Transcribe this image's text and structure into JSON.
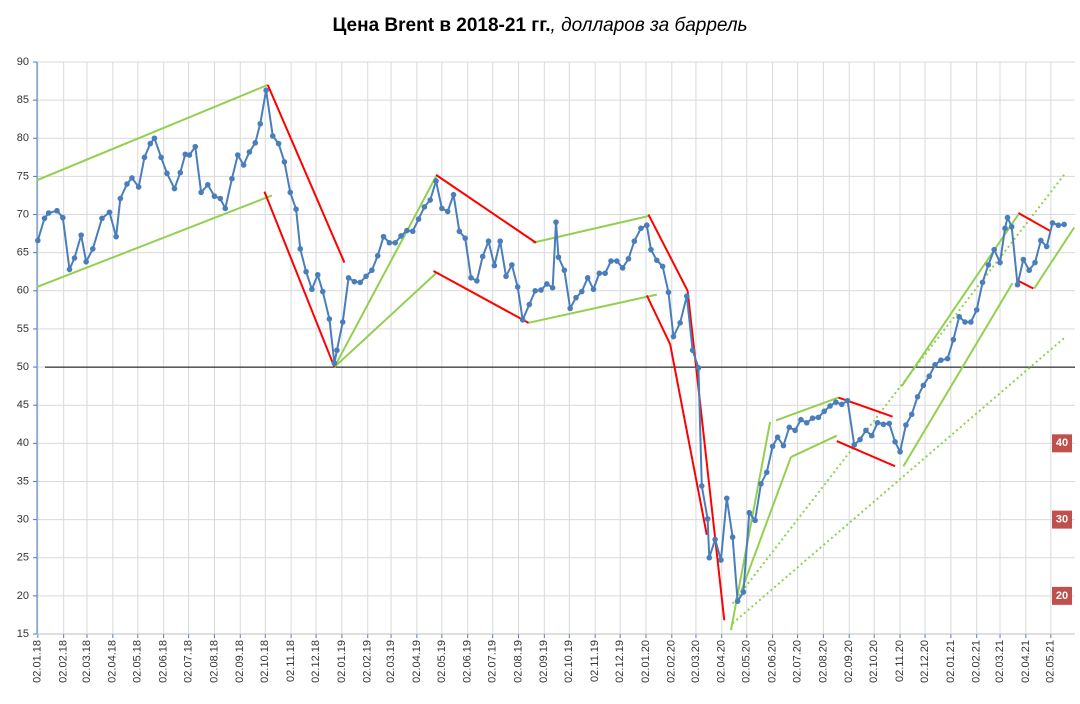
{
  "chart_data": {
    "type": "line",
    "title": "Цена Brent в 2018-21 гг.",
    "subtitle": ", долларов за баррель",
    "color": "#4a7ebb",
    "x": [
      "02.01.18",
      "10.01.18",
      "15.01.18",
      "25.01.18",
      "01.02.18",
      "09.02.18",
      "15.02.18",
      "23.02.18",
      "01.03.18",
      "09.03.18",
      "20.03.18",
      "29.03.18",
      "06.04.18",
      "11.04.18",
      "19.04.18",
      "25.04.18",
      "03.05.18",
      "10.05.18",
      "17.05.18",
      "22.05.18",
      "30.05.18",
      "06.06.18",
      "15.06.18",
      "22.06.18",
      "28.06.18",
      "03.07.18",
      "10.07.18",
      "17.07.18",
      "25.07.18",
      "02.08.18",
      "09.08.18",
      "15.08.18",
      "23.08.18",
      "30.08.18",
      "06.09.18",
      "13.09.18",
      "20.09.18",
      "26.09.18",
      "03.10.18",
      "11.10.18",
      "18.10.18",
      "25.10.18",
      "01.11.18",
      "08.11.18",
      "13.11.18",
      "20.11.18",
      "27.11.18",
      "04.12.18",
      "10.12.18",
      "18.12.18",
      "24.12.18",
      "27.12.18",
      "03.01.19",
      "10.01.19",
      "17.01.19",
      "24.01.19",
      "31.01.19",
      "07.02.19",
      "14.02.19",
      "21.02.19",
      "28.02.19",
      "07.03.19",
      "14.03.19",
      "21.03.19",
      "28.03.19",
      "04.04.19",
      "11.04.19",
      "18.04.19",
      "25.04.19",
      "02.05.19",
      "09.05.19",
      "16.05.19",
      "23.05.19",
      "30.05.19",
      "06.06.19",
      "13.06.19",
      "20.06.19",
      "27.06.19",
      "04.07.19",
      "11.07.19",
      "18.07.19",
      "25.07.19",
      "01.08.19",
      "07.08.19",
      "15.08.19",
      "22.08.19",
      "29.08.19",
      "05.09.19",
      "12.09.19",
      "16.09.19",
      "19.09.19",
      "26.09.19",
      "03.10.19",
      "10.10.19",
      "17.10.19",
      "24.10.19",
      "31.10.19",
      "07.11.19",
      "14.11.19",
      "21.11.19",
      "28.11.19",
      "05.12.19",
      "12.12.19",
      "19.12.19",
      "27.12.19",
      "03.01.20",
      "08.01.20",
      "15.01.20",
      "22.01.20",
      "29.01.20",
      "04.02.20",
      "12.02.20",
      "20.02.20",
      "27.02.20",
      "05.03.20",
      "09.03.20",
      "16.03.20",
      "18.03.20",
      "25.03.20",
      "01.04.20",
      "08.04.20",
      "15.04.20",
      "21.04.20",
      "28.04.20",
      "05.05.20",
      "12.05.20",
      "19.05.20",
      "26.05.20",
      "02.06.20",
      "08.06.20",
      "15.06.20",
      "22.06.20",
      "29.06.20",
      "06.07.20",
      "13.07.20",
      "20.07.20",
      "27.07.20",
      "03.08.20",
      "10.08.20",
      "17.08.20",
      "24.08.20",
      "31.08.20",
      "08.09.20",
      "15.09.20",
      "22.09.20",
      "29.09.20",
      "06.10.20",
      "13.10.20",
      "20.10.20",
      "27.10.20",
      "02.11.20",
      "09.11.20",
      "16.11.20",
      "23.11.20",
      "30.11.20",
      "07.12.20",
      "14.12.20",
      "21.12.20",
      "29.12.20",
      "05.01.21",
      "12.01.21",
      "19.01.21",
      "26.01.21",
      "02.02.21",
      "09.02.21",
      "16.02.21",
      "23.02.21",
      "02.03.21",
      "08.03.21",
      "11.03.21",
      "16.03.21",
      "23.03.21",
      "30.03.21",
      "06.04.21",
      "13.04.21",
      "20.04.21",
      "27.04.21",
      "04.05.21",
      "11.05.21",
      "18.05.21"
    ],
    "values": [
      66.6,
      69.5,
      70.2,
      70.5,
      69.6,
      62.8,
      64.3,
      67.3,
      63.8,
      65.5,
      69.5,
      70.3,
      67.1,
      72.1,
      74.0,
      74.8,
      73.6,
      77.5,
      79.3,
      80.0,
      77.5,
      75.4,
      73.4,
      75.5,
      77.9,
      77.8,
      78.9,
      72.9,
      73.9,
      72.4,
      72.1,
      70.8,
      74.7,
      77.8,
      76.5,
      78.2,
      79.4,
      81.9,
      86.3,
      80.3,
      79.3,
      76.9,
      72.9,
      70.7,
      65.5,
      62.5,
      60.2,
      62.1,
      59.9,
      56.3,
      50.5,
      52.2,
      55.9,
      61.7,
      61.2,
      61.1,
      61.9,
      62.7,
      64.6,
      67.1,
      66.3,
      66.3,
      67.2,
      67.9,
      67.8,
      69.4,
      71.0,
      71.9,
      74.4,
      70.8,
      70.4,
      72.6,
      67.8,
      66.9,
      61.7,
      61.3,
      64.5,
      66.5,
      63.3,
      66.5,
      61.9,
      63.4,
      60.5,
      56.2,
      58.2,
      60.0,
      60.1,
      60.9,
      60.4,
      69.0,
      64.4,
      62.7,
      57.7,
      59.1,
      59.9,
      61.7,
      60.2,
      62.3,
      62.3,
      63.9,
      63.9,
      63.0,
      64.2,
      66.5,
      68.2,
      68.6,
      65.4,
      64.0,
      63.2,
      59.8,
      54.0,
      55.8,
      59.3,
      52.2,
      49.9,
      34.4,
      30.1,
      25.0,
      27.4,
      24.7,
      32.8,
      27.7,
      19.3,
      20.5,
      30.9,
      29.9,
      34.7,
      36.2,
      39.6,
      40.8,
      39.7,
      42.1,
      41.7,
      43.1,
      42.7,
      43.3,
      43.4,
      44.2,
      44.9,
      45.4,
      45.1,
      45.6,
      39.8,
      40.5,
      41.7,
      41.0,
      42.7,
      42.5,
      42.6,
      40.2,
      38.9,
      42.4,
      43.8,
      46.1,
      47.6,
      48.8,
      50.3,
      50.9,
      51.1,
      53.6,
      56.6,
      55.9,
      55.9,
      57.5,
      61.1,
      63.4,
      65.4,
      63.7,
      68.2,
      69.6,
      68.4,
      60.8,
      64.1,
      62.7,
      63.7,
      66.6,
      65.8,
      68.9,
      68.6,
      68.7
    ],
    "xlim": [
      "01.01.18",
      "31.05.21"
    ],
    "xticks": [
      "02.01.18",
      "02.02.18",
      "02.03.18",
      "02.04.18",
      "02.05.18",
      "02.06.18",
      "02.07.18",
      "02.08.18",
      "02.09.18",
      "02.10.18",
      "02.11.18",
      "02.12.18",
      "02.01.19",
      "02.02.19",
      "02.03.19",
      "02.04.19",
      "02.05.19",
      "02.06.19",
      "02.07.19",
      "02.08.19",
      "02.09.19",
      "02.10.19",
      "02.11.19",
      "02.12.19",
      "02.01.20",
      "02.02.20",
      "02.03.20",
      "02.04.20",
      "02.05.20",
      "02.06.20",
      "02.07.20",
      "02.08.20",
      "02.09.20",
      "02.10.20",
      "02.11.20",
      "02.12.20",
      "02.01.21",
      "02.02.21",
      "02.03.21",
      "02.04.21",
      "02.05.21"
    ],
    "ylim": [
      15,
      90
    ],
    "yticks": [
      15,
      20,
      25,
      30,
      35,
      40,
      45,
      50,
      55,
      60,
      65,
      70,
      75,
      80,
      85,
      90
    ],
    "grid": true,
    "reference_line": 50,
    "side_labels": [
      40,
      30,
      20
    ],
    "side_label_color": "#c0504d",
    "trend_lines": [
      {
        "color": "#92d050",
        "style": "solid",
        "x": [
          "01.01.18",
          "05.10.18"
        ],
        "y": [
          74.5,
          87
        ]
      },
      {
        "color": "#92d050",
        "style": "solid",
        "x": [
          "01.01.18",
          "10.10.18"
        ],
        "y": [
          60.5,
          72.5
        ]
      },
      {
        "color": "#92d050",
        "style": "solid",
        "x": [
          "24.12.18",
          "25.04.19"
        ],
        "y": [
          50,
          75
        ]
      },
      {
        "color": "#92d050",
        "style": "solid",
        "x": [
          "24.12.18",
          "25.04.19"
        ],
        "y": [
          50,
          62.3
        ]
      },
      {
        "color": "#92d050",
        "style": "solid",
        "x": [
          "19.08.19",
          "05.01.20"
        ],
        "y": [
          66.3,
          69.8
        ]
      },
      {
        "color": "#92d050",
        "style": "solid",
        "x": [
          "14.08.19",
          "15.01.20"
        ],
        "y": [
          55.8,
          59.5
        ]
      },
      {
        "color": "#92d050",
        "style": "solid",
        "x": [
          "13.04.20",
          "30.05.20"
        ],
        "y": [
          15.5,
          42.8
        ]
      },
      {
        "color": "#92d050",
        "style": "solid",
        "x": [
          "25.04.20",
          "24.06.20"
        ],
        "y": [
          20.5,
          38.2
        ]
      },
      {
        "color": "#92d050",
        "style": "solid",
        "x": [
          "24.06.20",
          "18.08.20"
        ],
        "y": [
          38.2,
          41
        ]
      },
      {
        "color": "#92d050",
        "style": "solid",
        "x": [
          "06.06.20",
          "20.08.20"
        ],
        "y": [
          43,
          46
        ]
      },
      {
        "color": "#92d050",
        "style": "solid",
        "x": [
          "04.11.20",
          "24.03.21"
        ],
        "y": [
          47.5,
          70
        ]
      },
      {
        "color": "#92d050",
        "style": "solid",
        "x": [
          "06.11.20",
          "17.03.21"
        ],
        "y": [
          37,
          61
        ]
      },
      {
        "color": "#92d050",
        "style": "solid",
        "x": [
          "12.04.21",
          "30.05.21"
        ],
        "y": [
          60.3,
          68.3
        ]
      },
      {
        "color": "#92d050",
        "style": "dotted",
        "x": [
          "15.04.20",
          "20.05.21"
        ],
        "y": [
          19,
          75.5
        ]
      },
      {
        "color": "#92d050",
        "style": "dotted",
        "x": [
          "15.04.20",
          "20.05.21"
        ],
        "y": [
          16.4,
          54
        ]
      },
      {
        "color": "#ff0000",
        "style": "solid",
        "x": [
          "05.10.18",
          "05.01.19"
        ],
        "y": [
          87,
          63.7
        ]
      },
      {
        "color": "#ff0000",
        "style": "solid",
        "x": [
          "01.10.18",
          "24.12.18"
        ],
        "y": [
          73,
          50
        ]
      },
      {
        "color": "#ff0000",
        "style": "solid",
        "x": [
          "25.04.19",
          "23.08.19"
        ],
        "y": [
          75.2,
          66.3
        ]
      },
      {
        "color": "#ff0000",
        "style": "solid",
        "x": [
          "22.04.19",
          "14.08.19"
        ],
        "y": [
          62.6,
          55.8
        ]
      },
      {
        "color": "#ff0000",
        "style": "solid",
        "x": [
          "05.01.20",
          "21.02.20"
        ],
        "y": [
          70,
          60
        ]
      },
      {
        "color": "#ff0000",
        "style": "solid",
        "x": [
          "03.01.20",
          "31.01.20"
        ],
        "y": [
          59.4,
          53
        ]
      },
      {
        "color": "#ff0000",
        "style": "solid",
        "x": [
          "21.02.20",
          "05.04.20"
        ],
        "y": [
          60,
          16.8
        ]
      },
      {
        "color": "#ff0000",
        "style": "solid",
        "x": [
          "31.01.20",
          "15.03.20"
        ],
        "y": [
          53,
          28
        ]
      },
      {
        "color": "#ff0000",
        "style": "solid",
        "x": [
          "20.08.20",
          "24.10.20"
        ],
        "y": [
          46,
          43.5
        ]
      },
      {
        "color": "#ff0000",
        "style": "solid",
        "x": [
          "18.08.20",
          "27.10.20"
        ],
        "y": [
          40.3,
          37
        ]
      },
      {
        "color": "#ff0000",
        "style": "solid",
        "x": [
          "24.03.21",
          "02.05.21"
        ],
        "y": [
          70.2,
          67.8
        ]
      },
      {
        "color": "#ff0000",
        "style": "solid",
        "x": [
          "24.03.21",
          "11.04.21"
        ],
        "y": [
          61.3,
          60.3
        ]
      }
    ]
  }
}
